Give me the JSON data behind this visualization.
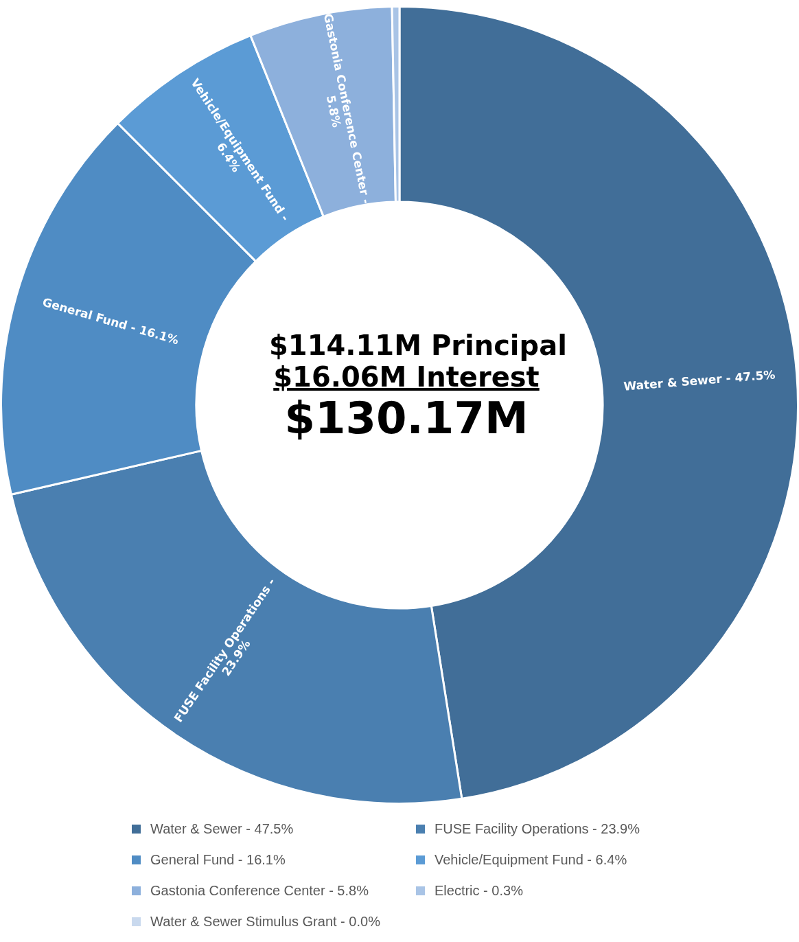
{
  "chart_data": {
    "type": "donut",
    "categories": [
      "Water & Sewer - 47.5%",
      "FUSE Facility Operations - 23.9%",
      "General Fund - 16.1%",
      "Vehicle/Equipment Fund - 6.4%",
      "Gastonia Conference Center - 5.8%",
      "Electric - 0.3%",
      "Water & Sewer Stimulus Grant - 0.0%"
    ],
    "values": [
      47.5,
      23.9,
      16.1,
      6.4,
      5.8,
      0.3,
      0.0
    ],
    "colors": [
      "#416e98",
      "#4a7fb0",
      "#4f8cc4",
      "#5b9bd5",
      "#8db0dc",
      "#a9c4e6",
      "#c9d9ee"
    ],
    "annotations": [
      "$114.11M Principal",
      "$16.06M Interest",
      "$130.17M"
    ],
    "legend": "bottom"
  }
}
